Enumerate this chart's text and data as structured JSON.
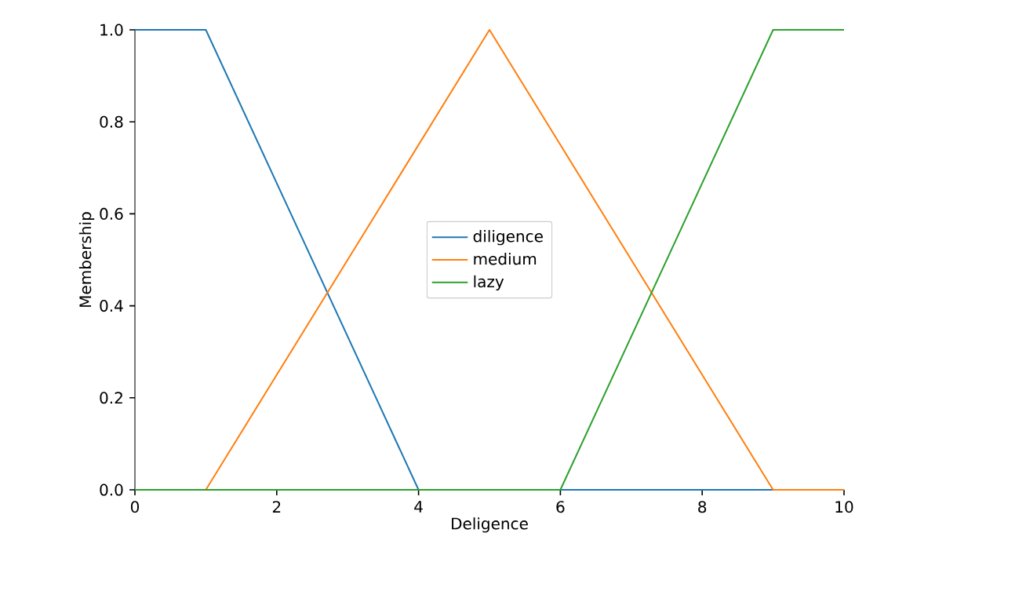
{
  "chart_data": {
    "type": "line",
    "xlabel": "Deligence",
    "ylabel": "Membership",
    "xlim": [
      0,
      10
    ],
    "ylim": [
      0,
      1
    ],
    "xticks": [
      0,
      2,
      4,
      6,
      8,
      10
    ],
    "yticks": [
      {
        "value": 0,
        "label": "0.0"
      },
      {
        "value": 0.2,
        "label": "0.2"
      },
      {
        "value": 0.4,
        "label": "0.4"
      },
      {
        "value": 0.6,
        "label": "0.6"
      },
      {
        "value": 0.8,
        "label": "0.8"
      },
      {
        "value": 1,
        "label": "1.0"
      }
    ],
    "grid": false,
    "legend": "center",
    "marker": "none",
    "line_style": "solid",
    "series": [
      {
        "name": "diligence",
        "color": "#1f77b4",
        "x": [
          0,
          1,
          4,
          10
        ],
        "values": [
          1,
          1,
          0,
          0
        ]
      },
      {
        "name": "medium",
        "color": "#ff7f0e",
        "x": [
          0,
          1,
          5,
          9,
          10
        ],
        "values": [
          0,
          0,
          1,
          0,
          0
        ]
      },
      {
        "name": "lazy",
        "color": "#2ca02c",
        "x": [
          0,
          6,
          9,
          10
        ],
        "values": [
          0,
          0,
          1,
          1
        ]
      }
    ]
  }
}
